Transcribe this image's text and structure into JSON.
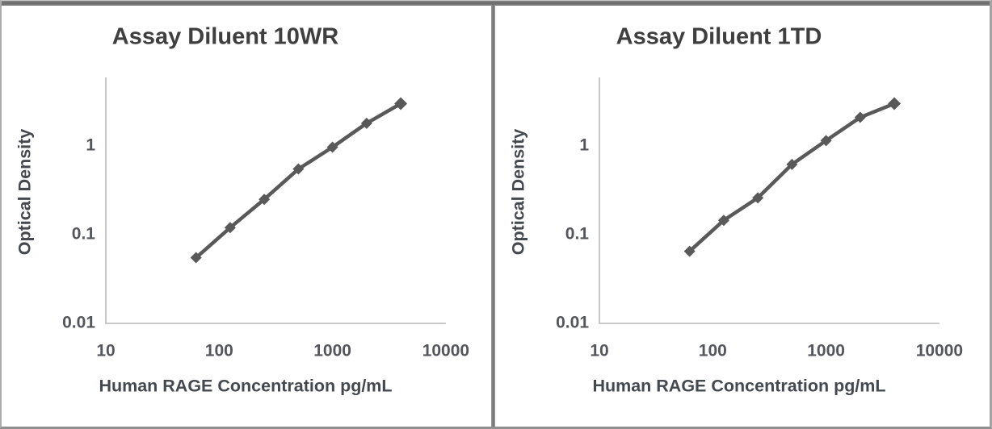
{
  "chart_data": [
    {
      "type": "line",
      "title": "Assay Diluent 10WR",
      "xlabel": "Human RAGE Concentration pg/mL",
      "ylabel": "Optical Density",
      "xscale": "log",
      "yscale": "log",
      "xlim": [
        10,
        10000
      ],
      "ylim": [
        0.01,
        6
      ],
      "grid": false,
      "legend": "none",
      "xticks": {
        "labels": [
          "10",
          "100",
          "1000",
          "10000"
        ],
        "values": [
          10,
          100,
          1000,
          10000
        ]
      },
      "yticks": {
        "labels": [
          "1",
          "0.1",
          "0.01"
        ],
        "values": [
          1,
          0.1,
          0.01
        ]
      },
      "x": [
        62.5,
        125,
        250,
        500,
        1000,
        2000,
        4000
      ],
      "y": [
        0.055,
        0.12,
        0.25,
        0.55,
        0.97,
        1.8,
        3.0
      ],
      "marker": "diamond",
      "line_color": "#595959"
    },
    {
      "type": "line",
      "title": "Assay Diluent 1TD",
      "xlabel": "Human RAGE Concentration pg/mL",
      "ylabel": "Optical Density",
      "xscale": "log",
      "yscale": "log",
      "xlim": [
        10,
        10000
      ],
      "ylim": [
        0.01,
        6
      ],
      "grid": false,
      "legend": "none",
      "xticks": {
        "labels": [
          "10",
          "100",
          "1000",
          "10000"
        ],
        "values": [
          10,
          100,
          1000,
          10000
        ]
      },
      "yticks": {
        "labels": [
          "1",
          "0.1",
          "0.01"
        ],
        "values": [
          1,
          0.1,
          0.01
        ]
      },
      "x": [
        62.5,
        125,
        250,
        500,
        1000,
        2000,
        4000
      ],
      "y": [
        0.065,
        0.145,
        0.26,
        0.62,
        1.15,
        2.1,
        3.0
      ],
      "marker": "diamond",
      "line_color": "#595959"
    }
  ]
}
